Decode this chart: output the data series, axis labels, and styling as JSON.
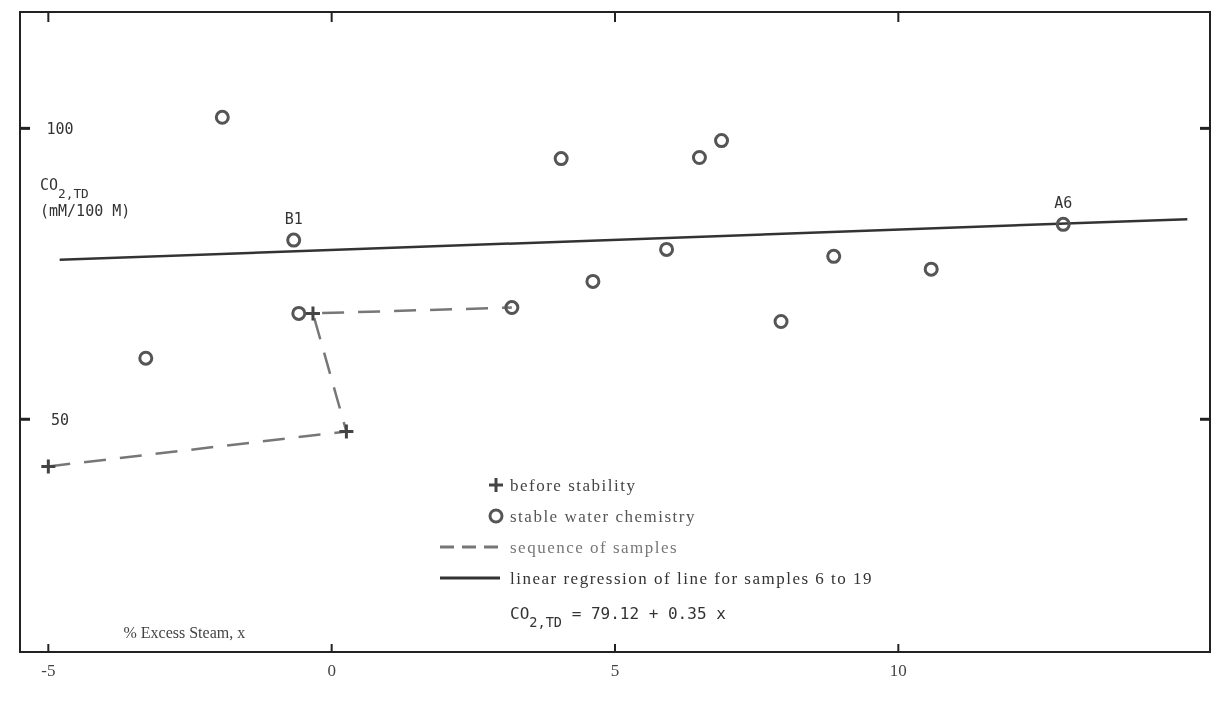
{
  "chart_data": {
    "type": "scatter",
    "xlabel": "% Excess Steam, x",
    "ylabel": "CO$_{2,TD}$ (mM/100 M)",
    "xlim": [
      -5.5,
      15.5
    ],
    "ylim": [
      10,
      120
    ],
    "xticks": [
      -5,
      0,
      5,
      10
    ],
    "yticks": [
      50,
      100
    ],
    "grid": false,
    "legend": "bottom",
    "series": [
      {
        "name": "before stability",
        "color": "#444444",
        "marker": "cross",
        "x": [
          -5.0,
          0.26,
          -0.33
        ],
        "values": [
          41.9,
          47.9,
          68.2
        ]
      },
      {
        "name": "stable water chemistry",
        "color": "#555555",
        "marker": "circle",
        "x": [
          -1.93,
          4.05,
          6.49,
          6.88,
          -0.67,
          5.91,
          4.61,
          8.86,
          10.58,
          12.91,
          7.93,
          -3.28,
          -0.58,
          3.18
        ],
        "values": [
          101.9,
          94.8,
          95.0,
          97.9,
          80.8,
          79.2,
          73.7,
          78.0,
          75.8,
          83.5,
          66.8,
          60.5,
          68.2,
          69.2
        ]
      },
      {
        "name": "sequence of samples",
        "type": "line",
        "color": "#777777",
        "line_style": "dashed",
        "x": [
          -5.0,
          0.26,
          -0.33,
          3.18
        ],
        "values": [
          41.9,
          47.9,
          68.2,
          69.2
        ]
      },
      {
        "name": "linear regression of line for samples 6 to 19",
        "type": "line",
        "color": "#333333",
        "line_style": "solid",
        "x": [
          -4.8,
          15.1
        ],
        "values": [
          77.4,
          84.4
        ]
      }
    ],
    "annotations": [
      {
        "text": "B1",
        "x": -0.67,
        "y": 80.8
      },
      {
        "text": "A6",
        "x": 12.91,
        "y": 83.5
      },
      "CO$_{2,TD}$ = 79.12 + 0.35 x"
    ]
  }
}
